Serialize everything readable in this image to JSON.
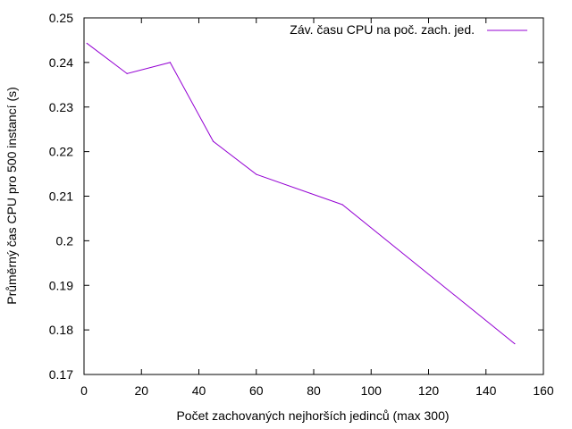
{
  "chart_data": {
    "type": "line",
    "title": "",
    "xlabel": "Počet zachovaných nejhorších jedinců (max 300)",
    "ylabel": "Průměrný čas CPU pro 500 instancí (s)",
    "xlim": [
      0,
      160
    ],
    "ylim": [
      0.17,
      0.25
    ],
    "x_ticks": [
      0,
      20,
      40,
      60,
      80,
      100,
      120,
      140,
      160
    ],
    "y_ticks": [
      0.17,
      0.18,
      0.19,
      0.2,
      0.21,
      0.22,
      0.23,
      0.24,
      0.25
    ],
    "x_tick_labels": [
      "0",
      "20",
      "40",
      "60",
      "80",
      "100",
      "120",
      "140",
      "160"
    ],
    "y_tick_labels": [
      "0.17",
      "0.18",
      "0.19",
      "0.2",
      "0.21",
      "0.22",
      "0.23",
      "0.24",
      "0.25"
    ],
    "grid": false,
    "legend_position": "top-right",
    "series": [
      {
        "name": "Záv. času CPU na poč. zach. jed.",
        "color": "#9400d3",
        "x": [
          1,
          15,
          30,
          45,
          60,
          90,
          150
        ],
        "y": [
          0.2443,
          0.2375,
          0.24,
          0.2223,
          0.2149,
          0.2081,
          0.1769
        ]
      }
    ]
  }
}
